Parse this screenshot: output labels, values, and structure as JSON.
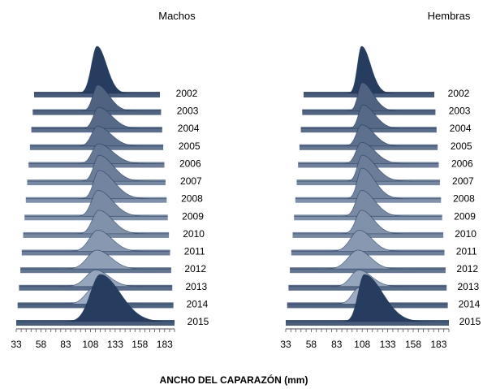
{
  "chart_data": {
    "type": "area",
    "style": "3d-ridgeline",
    "xlabel": "ANCHO DEL CAPARAZÓN (mm)",
    "x_ticks": [
      33,
      58,
      83,
      108,
      133,
      158,
      183
    ],
    "xlim": [
      33,
      193
    ],
    "series_names": [
      "2002",
      "2003",
      "2004",
      "2005",
      "2006",
      "2007",
      "2008",
      "2009",
      "2010",
      "2011",
      "2012",
      "2013",
      "2014",
      "2015"
    ],
    "colors": {
      "front": "#2c4f86",
      "back": "#c5d2e4",
      "edge": "#1e3558",
      "floor": "#f2f2f2"
    },
    "panels": [
      {
        "title": "Machos",
        "distributions": [
          {
            "year": "2002",
            "mode": 113,
            "height": 1.0,
            "spread_left": 7,
            "spread_right": 12
          },
          {
            "year": "2003",
            "mode": 114,
            "height": 0.55,
            "spread_left": 6,
            "spread_right": 14
          },
          {
            "year": "2004",
            "mode": 115,
            "height": 0.45,
            "spread_left": 6,
            "spread_right": 16
          },
          {
            "year": "2005",
            "mode": 114,
            "height": 0.42,
            "spread_left": 7,
            "spread_right": 16
          },
          {
            "year": "2006",
            "mode": 115,
            "height": 0.42,
            "spread_left": 7,
            "spread_right": 17
          },
          {
            "year": "2007",
            "mode": 116,
            "height": 0.55,
            "spread_left": 6,
            "spread_right": 16
          },
          {
            "year": "2008",
            "mode": 116,
            "height": 0.6,
            "spread_left": 6,
            "spread_right": 17
          },
          {
            "year": "2009",
            "mode": 115,
            "height": 0.55,
            "spread_left": 7,
            "spread_right": 16
          },
          {
            "year": "2010",
            "mode": 116,
            "height": 0.5,
            "spread_left": 7,
            "spread_right": 15
          },
          {
            "year": "2011",
            "mode": 115,
            "height": 0.45,
            "spread_left": 9,
            "spread_right": 15
          },
          {
            "year": "2012",
            "mode": 114,
            "height": 0.4,
            "spread_left": 10,
            "spread_right": 15
          },
          {
            "year": "2013",
            "mode": 113,
            "height": 0.35,
            "spread_left": 10,
            "spread_right": 14
          },
          {
            "year": "2014",
            "mode": 112,
            "height": 0.35,
            "spread_left": 9,
            "spread_right": 14
          },
          {
            "year": "2015",
            "mode": 118,
            "height": 1.0,
            "spread_left": 10,
            "spread_right": 20
          }
        ]
      },
      {
        "title": "Hembras",
        "distributions": [
          {
            "year": "2002",
            "mode": 104,
            "height": 1.0,
            "spread_left": 5,
            "spread_right": 11
          },
          {
            "year": "2003",
            "mode": 105,
            "height": 0.6,
            "spread_left": 5,
            "spread_right": 13
          },
          {
            "year": "2004",
            "mode": 106,
            "height": 0.5,
            "spread_left": 5,
            "spread_right": 14
          },
          {
            "year": "2005",
            "mode": 105,
            "height": 0.45,
            "spread_left": 6,
            "spread_right": 14
          },
          {
            "year": "2006",
            "mode": 105,
            "height": 0.45,
            "spread_left": 6,
            "spread_right": 15
          },
          {
            "year": "2007",
            "mode": 106,
            "height": 0.55,
            "spread_left": 5,
            "spread_right": 15
          },
          {
            "year": "2008",
            "mode": 106,
            "height": 0.65,
            "spread_left": 5,
            "spread_right": 14
          },
          {
            "year": "2009",
            "mode": 106,
            "height": 0.55,
            "spread_left": 6,
            "spread_right": 14
          },
          {
            "year": "2010",
            "mode": 106,
            "height": 0.5,
            "spread_left": 6,
            "spread_right": 13
          },
          {
            "year": "2011",
            "mode": 104,
            "height": 0.45,
            "spread_left": 9,
            "spread_right": 13
          },
          {
            "year": "2012",
            "mode": 103,
            "height": 0.4,
            "spread_left": 10,
            "spread_right": 13
          },
          {
            "year": "2013",
            "mode": 104,
            "height": 0.35,
            "spread_left": 8,
            "spread_right": 13
          },
          {
            "year": "2014",
            "mode": 105,
            "height": 0.35,
            "spread_left": 7,
            "spread_right": 12
          },
          {
            "year": "2015",
            "mode": 110,
            "height": 1.0,
            "spread_left": 6,
            "spread_right": 18
          }
        ]
      }
    ]
  }
}
